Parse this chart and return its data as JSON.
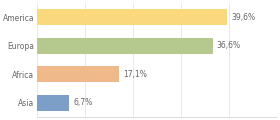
{
  "categories": [
    "America",
    "Europa",
    "Africa",
    "Asia"
  ],
  "values": [
    39.6,
    36.6,
    17.1,
    6.7
  ],
  "labels": [
    "39,6%",
    "36,6%",
    "17,1%",
    "6,7%"
  ],
  "bar_colors": [
    "#f9d87e",
    "#b5c98e",
    "#f0b98a",
    "#7b9fc7"
  ],
  "background_color": "#ffffff",
  "xlim": [
    0,
    50
  ],
  "label_fontsize": 5.5,
  "tick_fontsize": 5.5,
  "bar_height": 0.55
}
